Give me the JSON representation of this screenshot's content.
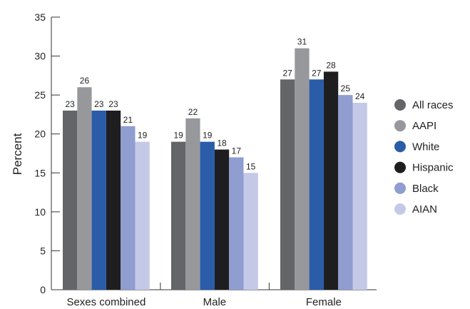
{
  "chart_data": {
    "type": "bar",
    "title": "",
    "xlabel": "",
    "ylabel": "Percent",
    "ylim": [
      0,
      35
    ],
    "yticks": [
      0,
      5,
      10,
      15,
      20,
      25,
      30,
      35
    ],
    "grid": false,
    "legend_position": "right",
    "categories": [
      "Sexes combined",
      "Male",
      "Female"
    ],
    "series": [
      {
        "name": "All races",
        "color": "#646569",
        "values": [
          23,
          19,
          27
        ]
      },
      {
        "name": "AAPI",
        "color": "#97989c",
        "values": [
          26,
          22,
          31
        ]
      },
      {
        "name": "White",
        "color": "#2a5ca8",
        "values": [
          23,
          19,
          27
        ]
      },
      {
        "name": "Hispanic",
        "color": "#1e1e20",
        "values": [
          23,
          18,
          28
        ]
      },
      {
        "name": "Black",
        "color": "#8f9dd0",
        "values": [
          21,
          17,
          25
        ]
      },
      {
        "name": "AIAN",
        "color": "#c5c9e8",
        "values": [
          19,
          15,
          24
        ]
      }
    ]
  }
}
